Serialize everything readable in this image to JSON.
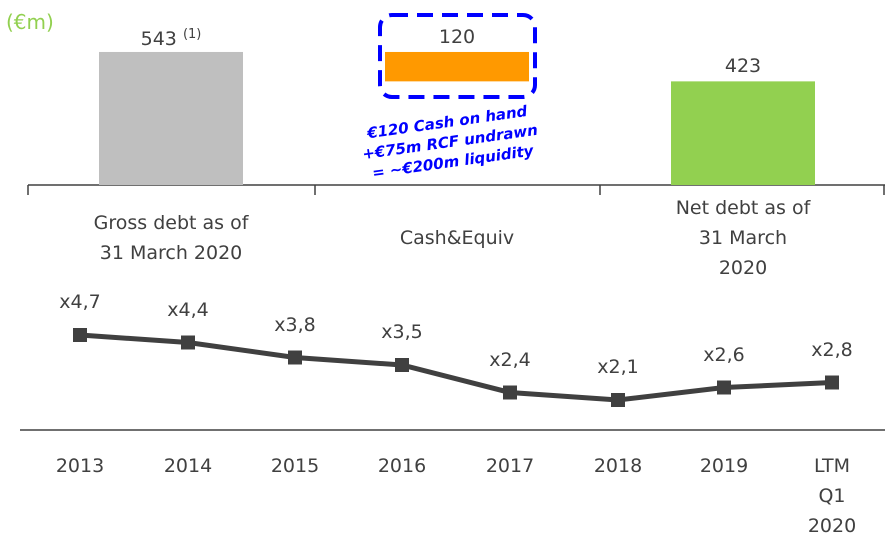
{
  "chart_data": [
    {
      "type": "waterfall",
      "unit_label": "(€m)",
      "categories": [
        "Gross debt as of\n31 March 2020",
        "Cash&Equiv",
        "Net debt as of\n31 March 2020"
      ],
      "values": [
        543,
        120,
        423
      ],
      "measures": [
        "total",
        "decrease",
        "total"
      ],
      "colors": [
        "#bfbfbf",
        "#ff9900",
        "#92d050"
      ],
      "first_value_note": "(1)",
      "annotation": [
        "€120 Cash on hand",
        "+€75m RCF undrawn",
        "= ~€200m liquidity"
      ]
    },
    {
      "type": "line",
      "categories": [
        "2013",
        "2014",
        "2015",
        "2016",
        "2017",
        "2018",
        "2019",
        "LTM Q1\n2020"
      ],
      "values": [
        4.7,
        4.4,
        3.8,
        3.5,
        2.4,
        2.1,
        2.6,
        2.8
      ],
      "value_labels": [
        "x4,7",
        "x4,4",
        "x3,8",
        "x3,5",
        "x2,4",
        "x2,1",
        "x2,6",
        "x2,8"
      ],
      "color": "#404040"
    }
  ]
}
